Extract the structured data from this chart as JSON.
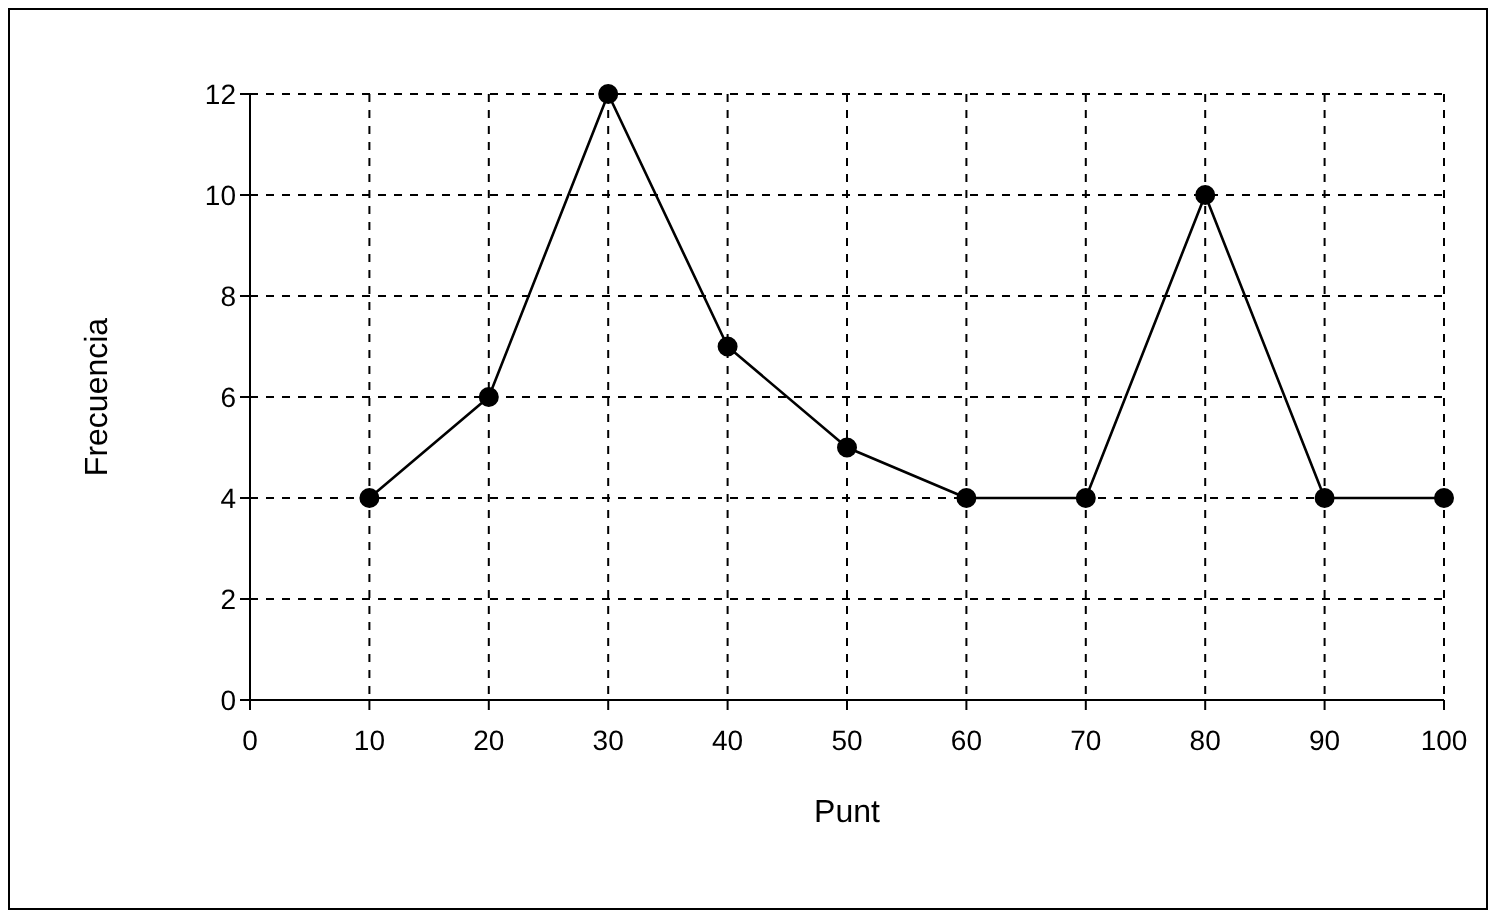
{
  "chart_data": {
    "type": "line",
    "xlabel": "Punt",
    "ylabel": "Frecuencia",
    "x": [
      10,
      20,
      30,
      40,
      50,
      60,
      70,
      80,
      90,
      100
    ],
    "series": [
      {
        "color": "#000000",
        "values": [
          4,
          6,
          12,
          7,
          5,
          4,
          4,
          10,
          4,
          4
        ]
      }
    ],
    "xlim": [
      0,
      100
    ],
    "xticks": [
      0,
      10,
      20,
      30,
      40,
      50,
      60,
      70,
      80,
      90,
      100
    ],
    "ylim": [
      0,
      12
    ],
    "yticks": [
      0,
      2,
      4,
      6,
      8,
      10,
      12
    ],
    "grid": true,
    "marker": "circle",
    "line_style": "solid"
  }
}
